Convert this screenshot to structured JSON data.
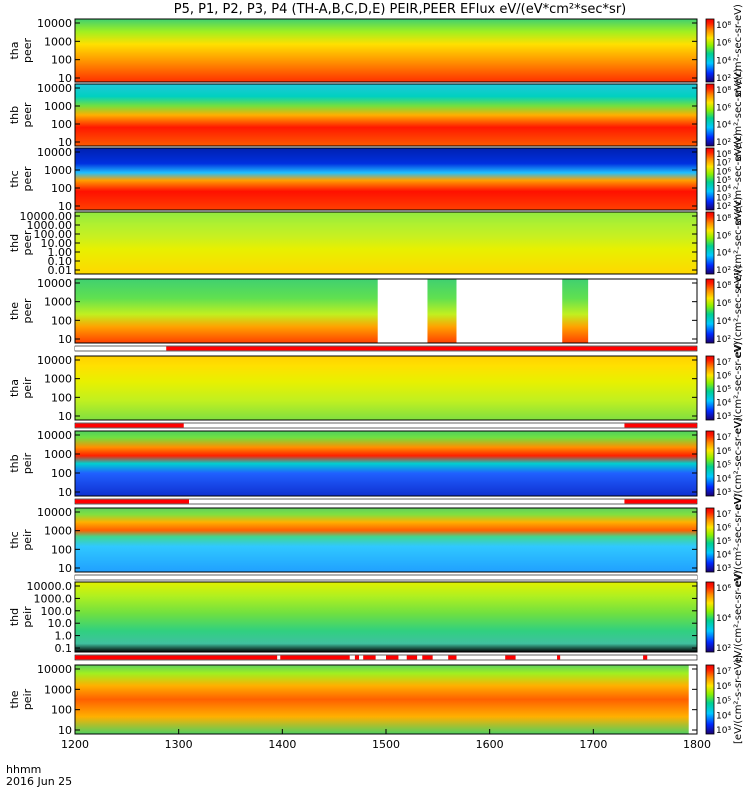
{
  "chart_data": {
    "type": "heatmap",
    "title": "P5, P1, P2, P3, P4 (TH-A,B,C,D,E) PEIR,PEER EFlux eV/(eV*cm²*sec*sr)",
    "x_range": [
      1200,
      1800
    ],
    "x_ticks": [
      "1200",
      "1300",
      "1400",
      "1500",
      "1600",
      "1700",
      "1800"
    ],
    "footer": [
      "hhmm",
      "2016 Jun 25"
    ],
    "panels": [
      {
        "probe": "tha",
        "species": "peer",
        "yticks": [
          "10",
          "100",
          "1000",
          "10000"
        ],
        "cbticks": [
          "10²",
          "10⁴",
          "10⁶",
          "10⁸"
        ],
        "cblabel": "eV/(cm²-sec-sr-eV)"
      },
      {
        "probe": "thb",
        "species": "peer",
        "yticks": [
          "10",
          "100",
          "1000",
          "10000"
        ],
        "cbticks": [
          "10²",
          "10⁴",
          "10⁶",
          "10⁸"
        ],
        "cblabel": "eV/(cm²-sec-sr-eV)"
      },
      {
        "probe": "thc",
        "species": "peer",
        "yticks": [
          "10",
          "100",
          "1000",
          "10000"
        ],
        "cbticks": [
          "10²",
          "10³",
          "10⁴",
          "10⁵",
          "10⁶",
          "10⁷",
          "10⁸"
        ],
        "cblabel": "eV/(cm²-sec-sr-eV)"
      },
      {
        "probe": "thd",
        "species": "peer",
        "yticks": [
          "0.01",
          "0.10",
          "1.00",
          "10.00",
          "100.00",
          "1000.00",
          "10000.00"
        ],
        "cbticks": [
          "10²",
          "10⁴",
          "10⁶",
          "10⁸"
        ],
        "cblabel": "eV/(cm²-sec-sr-eV)"
      },
      {
        "probe": "the",
        "species": "peer",
        "yticks": [
          "10",
          "100",
          "1000",
          "10000"
        ],
        "cbticks": [
          "10²",
          "10⁴",
          "10⁶",
          "10⁸"
        ],
        "cblabel": "eV/(cm²-sec-sr-eV)"
      },
      {
        "probe": "tha",
        "species": "peir",
        "yticks": [
          "10",
          "100",
          "1000",
          "10000"
        ],
        "cbticks": [
          "10³",
          "10⁴",
          "10⁵",
          "10⁶",
          "10⁷"
        ],
        "cblabel": "eV/(cm²-sec-sr-eV)"
      },
      {
        "probe": "thb",
        "species": "peir",
        "yticks": [
          "10",
          "100",
          "1000",
          "10000"
        ],
        "cbticks": [
          "10³",
          "10⁴",
          "10⁵",
          "10⁶",
          "10⁷"
        ],
        "cblabel": "eV/(cm²-sec-sr-eV)"
      },
      {
        "probe": "thc",
        "species": "peir",
        "yticks": [
          "10",
          "100",
          "1000",
          "10000"
        ],
        "cbticks": [
          "10³",
          "10⁴",
          "10⁵",
          "10⁶",
          "10⁷"
        ],
        "cblabel": "eV/(cm²-sec-sr-eV)"
      },
      {
        "probe": "thd",
        "species": "peir",
        "yticks": [
          "0.1",
          "1.0",
          "10.0",
          "100.0",
          "1000.0",
          "10000.0"
        ],
        "cbticks": [
          "10²",
          "10⁴",
          "10⁶"
        ],
        "cblabel": "eV/(cm²-sec-sr-eV)"
      },
      {
        "probe": "the",
        "species": "peir",
        "yticks": [
          "10",
          "100",
          "1000",
          "10000"
        ],
        "cbticks": [
          "10³",
          "10⁴",
          "10⁵",
          "10⁶",
          "10⁷"
        ],
        "cblabel": "[eV/(cm²-s-sr-eV)]"
      }
    ],
    "gaps": [
      {
        "panel": 4,
        "from": 1492,
        "to": 1540
      },
      {
        "panel": 4,
        "from": 1568,
        "to": 1670
      },
      {
        "panel": 4,
        "from": 1695,
        "to": 1800
      },
      {
        "panel": 9,
        "from": 1792,
        "to": 1800
      }
    ],
    "flag_bars": [
      {
        "after_panel": 4,
        "segments": [
          [
            1200,
            1288
          ],
          [
            1288,
            1800
          ]
        ],
        "colors": [
          "#ffffff",
          "#ff0000"
        ]
      },
      {
        "after_panel": 5,
        "segments": [
          [
            1200,
            1305
          ],
          [
            1305,
            1730
          ],
          [
            1730,
            1800
          ]
        ],
        "colors": [
          "#ff0000",
          "#ffffff",
          "#ff0000"
        ]
      },
      {
        "after_panel": 6,
        "segments": [
          [
            1200,
            1310
          ],
          [
            1310,
            1730
          ],
          [
            1730,
            1800
          ]
        ],
        "colors": [
          "#ff0000",
          "#ffffff",
          "#ff0000"
        ]
      },
      {
        "after_panel": 7,
        "segments": [
          [
            1200,
            1800
          ]
        ],
        "colors": [
          "#ffffff"
        ]
      },
      {
        "after_panel": 8,
        "segments": [
          [
            1200,
            1395
          ],
          [
            1398,
            1465
          ],
          [
            1470,
            1474
          ],
          [
            1478,
            1490
          ],
          [
            1500,
            1512
          ],
          [
            1520,
            1530
          ],
          [
            1535,
            1545
          ],
          [
            1560,
            1568
          ],
          [
            1615,
            1625
          ],
          [
            1665,
            1668
          ],
          [
            1748,
            1752
          ]
        ],
        "colors": [
          "#ff0000"
        ]
      }
    ]
  }
}
